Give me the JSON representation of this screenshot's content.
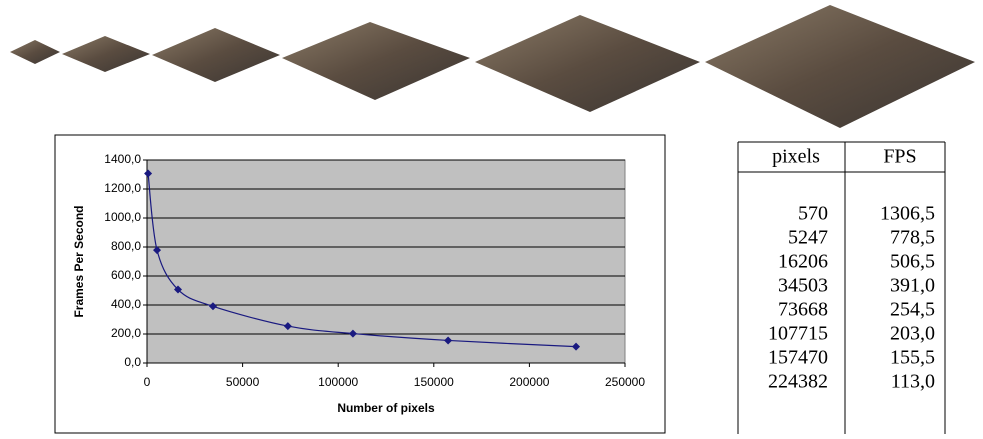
{
  "chart_data": {
    "type": "line",
    "x_label": "Number of pixels",
    "y_label": "Frames Per Second",
    "x": [
      570,
      5247,
      16206,
      34503,
      73668,
      107715,
      157470,
      224382
    ],
    "series": [
      {
        "color": "#1a1a80",
        "values": [
          1306.5,
          778.5,
          506.5,
          391.0,
          254.5,
          203.0,
          155.5,
          113.0
        ]
      }
    ],
    "xlim": [
      0,
      250000
    ],
    "xticks": [
      0,
      50000,
      100000,
      150000,
      200000,
      250000
    ],
    "ylim": [
      0,
      1400
    ],
    "yticks": [
      {
        "value": 0,
        "label": "0,0"
      },
      {
        "value": 200,
        "label": "200,0"
      },
      {
        "value": 400,
        "label": "400,0"
      },
      {
        "value": 600,
        "label": "600,0"
      },
      {
        "value": 800,
        "label": "800,0"
      },
      {
        "value": 1000,
        "label": "1000,0"
      },
      {
        "value": 1200,
        "label": "1200,0"
      },
      {
        "value": 1400,
        "label": "1400,0"
      }
    ],
    "grid": true,
    "plot_background": "#c0c0c0"
  },
  "table": {
    "header": [
      "pixels",
      "FPS"
    ],
    "rows": [
      [
        "570",
        "1306,5"
      ],
      [
        "5247",
        "778,5"
      ],
      [
        "16206",
        "506,5"
      ],
      [
        "34503",
        "391,0"
      ],
      [
        "73668",
        "254,5"
      ],
      [
        "107715",
        "203,0"
      ],
      [
        "157470",
        "155,5"
      ],
      [
        "224382",
        "113,0"
      ]
    ]
  }
}
